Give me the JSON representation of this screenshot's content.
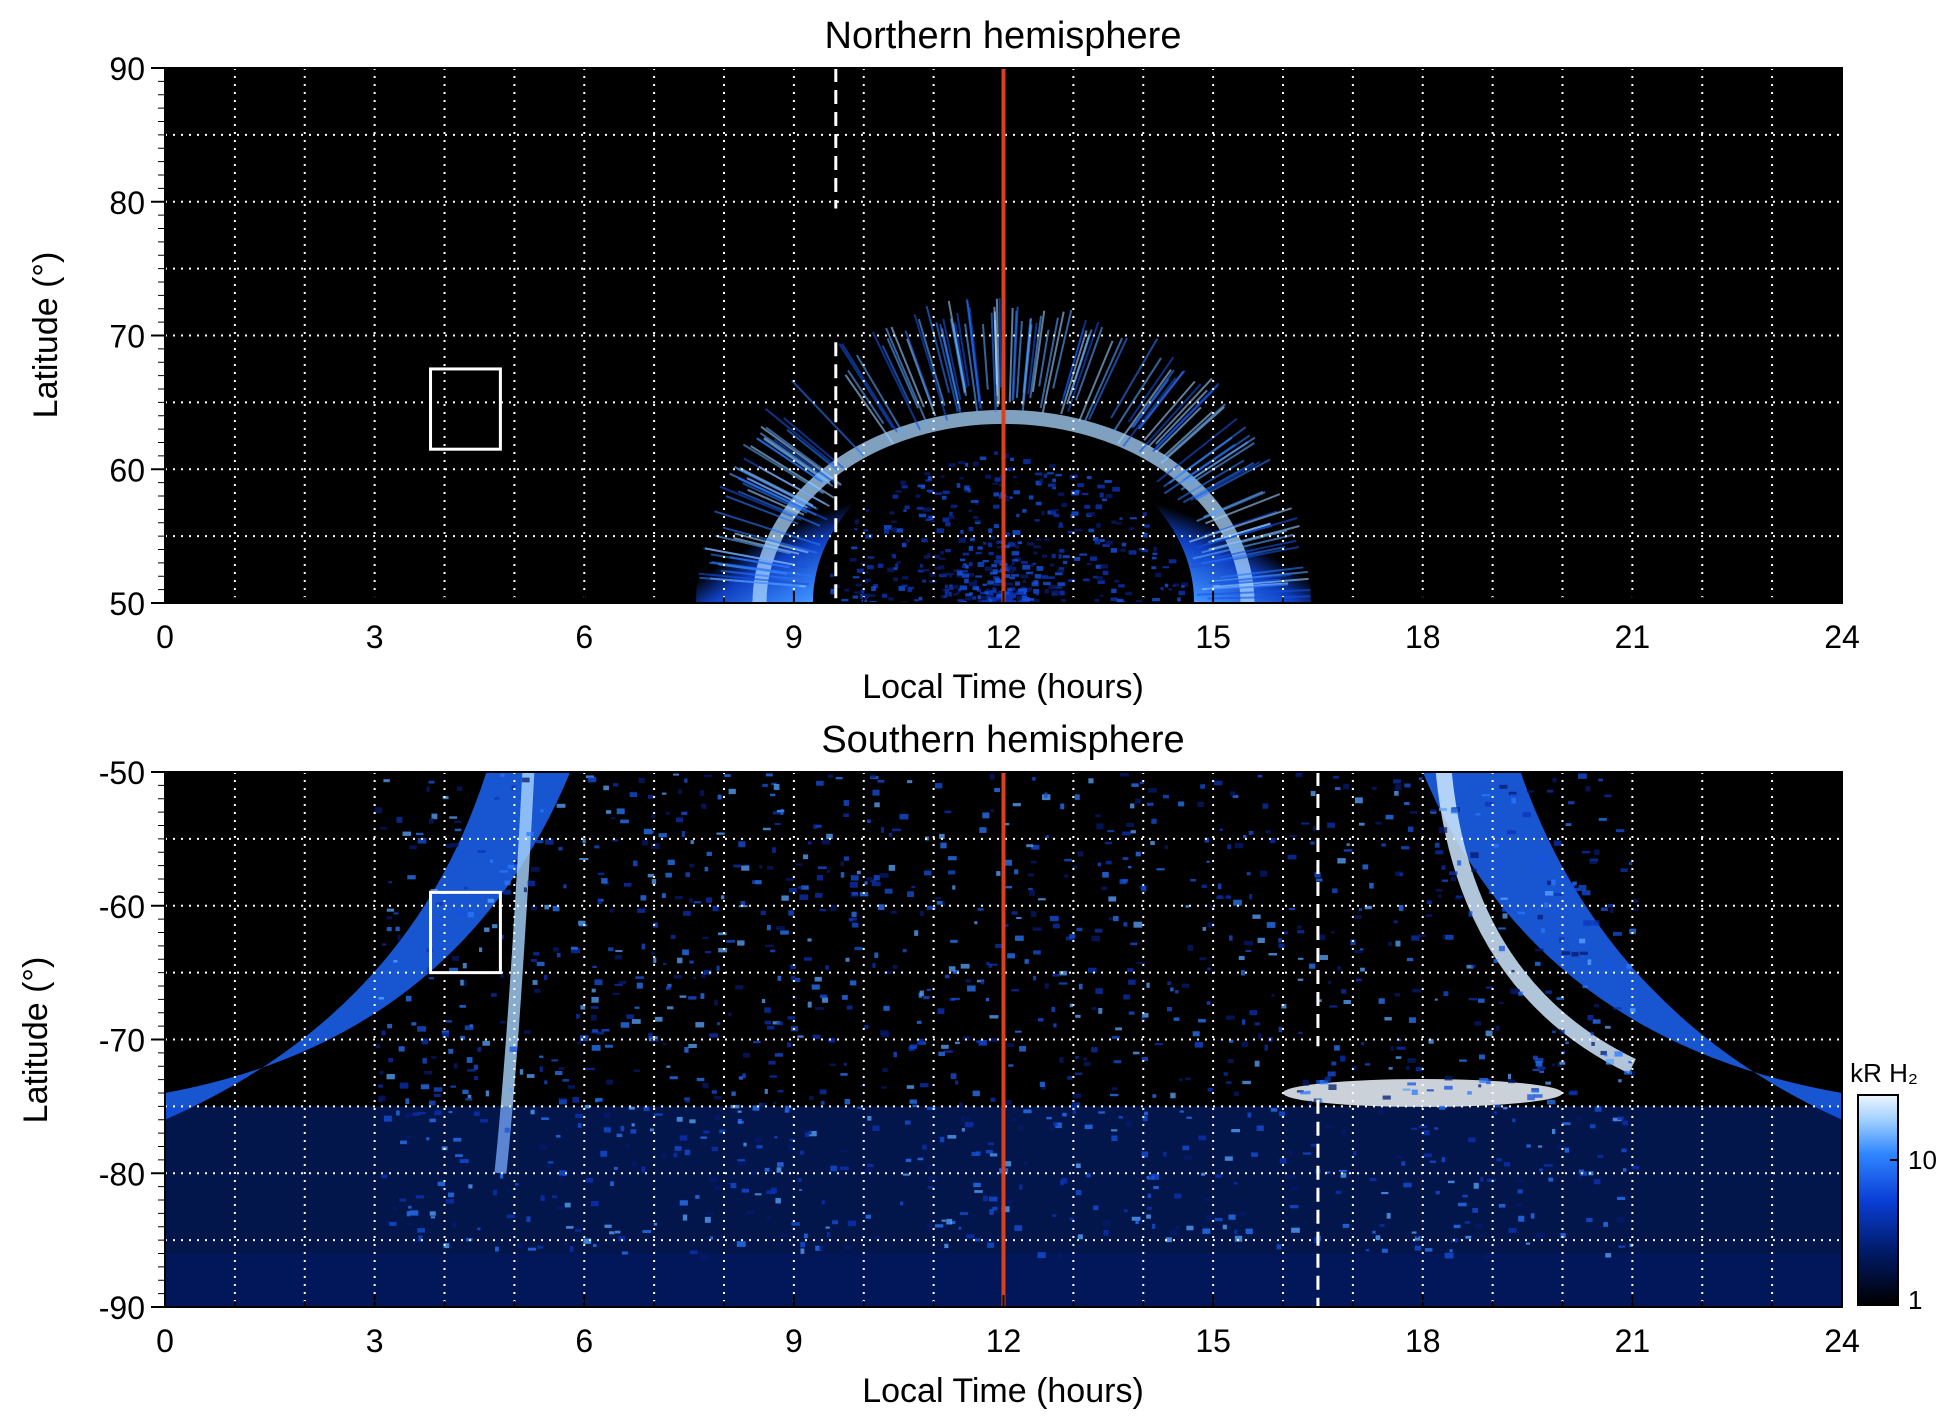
{
  "chart_data": [
    {
      "type": "heatmap",
      "title": "Northern hemisphere",
      "xlabel": "Local Time (hours)",
      "ylabel": "Latitude (°)",
      "xlim": [
        0,
        24
      ],
      "ylim": [
        50,
        90
      ],
      "xticks": [
        0,
        3,
        6,
        9,
        12,
        15,
        18,
        21,
        24
      ],
      "yticks": [
        50,
        60,
        70,
        80,
        90
      ],
      "grid": true,
      "noon_line_lt": 12,
      "noon_line_color": "#d9411e",
      "dashed_marker_lt": 9.6,
      "dashed_marker_lat_ranges": [
        [
          79.5,
          90
        ],
        [
          50,
          69.5
        ]
      ],
      "box": {
        "lt": [
          3.8,
          4.8
        ],
        "lat": [
          61.5,
          67.5
        ]
      },
      "oval": {
        "lt_range": [
          7.7,
          16.5
        ],
        "peak_lat": 73,
        "bright_band": "~62–70° near noon"
      }
    },
    {
      "type": "heatmap",
      "title": "Southern hemisphere",
      "xlabel": "Local Time (hours)",
      "ylabel": "Latitude (°)",
      "xlim": [
        0,
        24
      ],
      "ylim": [
        -90,
        -50
      ],
      "xticks": [
        0,
        3,
        6,
        9,
        12,
        15,
        18,
        21,
        24
      ],
      "yticks": [
        -90,
        -80,
        -70,
        -60,
        -50
      ],
      "grid": true,
      "noon_line_lt": 12,
      "noon_line_color": "#d9411e",
      "dashed_marker_lt": 16.5,
      "dashed_marker_lat_ranges": [
        [
          -70.5,
          -50
        ],
        [
          -90,
          -74.5
        ]
      ],
      "box": {
        "lt": [
          3.8,
          4.8
        ],
        "lat": [
          -65,
          -59
        ]
      },
      "oval": {
        "dawn_arc_lt": [
          0,
          6
        ],
        "dusk_arc_lt": [
          18,
          24
        ],
        "bright_spot_lat": -74,
        "bright_spot_lt": [
          16,
          20
        ]
      }
    }
  ],
  "colorbar": {
    "title": "kR H₂",
    "ticks": [
      "1",
      "10"
    ],
    "colors": [
      "#000000",
      "#001a66",
      "#0a3fd6",
      "#2f86ff",
      "#9fd0ff",
      "#eef6ff"
    ]
  }
}
